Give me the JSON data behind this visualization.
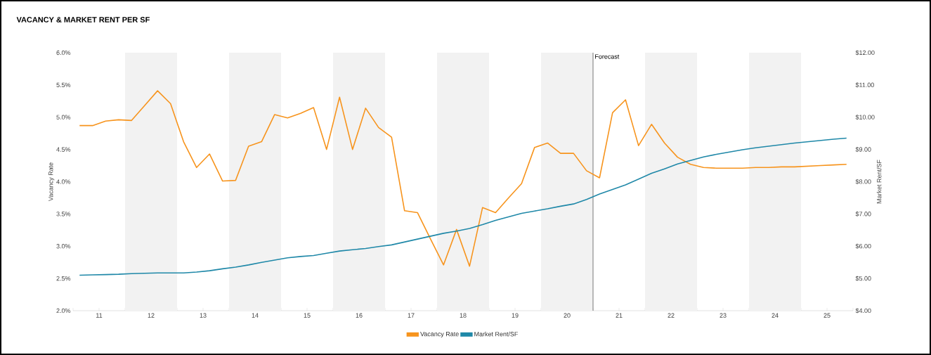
{
  "chart_data": {
    "type": "line",
    "title": "VACANCY & MARKET RENT PER SF",
    "ylabel": "Vacancy Rate",
    "y2label": "Market Rent/SF",
    "x": [
      11.125,
      11.375,
      11.625,
      11.875,
      12.125,
      12.375,
      12.625,
      12.875,
      13.125,
      13.375,
      13.625,
      13.875,
      14.125,
      14.375,
      14.625,
      14.875,
      15.125,
      15.375,
      15.625,
      15.875,
      16.125,
      16.375,
      16.625,
      16.875,
      17.125,
      17.375,
      17.625,
      17.875,
      18.125,
      18.375,
      18.625,
      18.875,
      19.125,
      19.375,
      19.625,
      19.875,
      20.125,
      20.375,
      20.625,
      20.875,
      21.125,
      21.375,
      21.625,
      21.875,
      22.125,
      22.375,
      22.625,
      22.875,
      23.125,
      23.375,
      23.625,
      23.875,
      24.125,
      24.375,
      24.625,
      24.875,
      25.125,
      25.375,
      25.625,
      25.875
    ],
    "series": [
      {
        "name": "Vacancy Rate",
        "color": "#f7941d",
        "values": [
          4.87,
          4.87,
          4.94,
          4.96,
          4.95,
          5.18,
          5.41,
          5.21,
          4.62,
          4.22,
          4.43,
          4.01,
          4.02,
          4.55,
          4.62,
          5.04,
          4.99,
          5.06,
          5.15,
          4.5,
          5.31,
          4.5,
          5.14,
          4.84,
          4.69,
          3.55,
          3.52,
          3.11,
          2.71,
          3.26,
          2.69,
          3.6,
          3.52,
          3.75,
          3.97,
          4.53,
          4.6,
          4.44,
          4.44,
          4.17,
          4.06,
          5.07,
          5.27,
          4.56,
          4.89,
          4.6,
          4.38,
          4.27,
          4.22,
          4.21,
          4.21,
          4.21,
          4.22,
          4.22,
          4.23,
          4.23,
          4.24,
          4.25,
          4.26,
          4.27
        ]
      },
      {
        "name": "Market Rent/SF",
        "color": "#1f88a8",
        "axis": "y2",
        "values": [
          5.1,
          5.11,
          5.12,
          5.13,
          5.15,
          5.16,
          5.17,
          5.17,
          5.17,
          5.2,
          5.24,
          5.3,
          5.35,
          5.42,
          5.5,
          5.57,
          5.64,
          5.68,
          5.71,
          5.78,
          5.85,
          5.89,
          5.93,
          5.99,
          6.04,
          6.13,
          6.22,
          6.31,
          6.4,
          6.47,
          6.55,
          6.67,
          6.8,
          6.91,
          7.02,
          7.09,
          7.16,
          7.24,
          7.31,
          7.45,
          7.62,
          7.76,
          7.9,
          8.08,
          8.26,
          8.4,
          8.55,
          8.66,
          8.77,
          8.85,
          8.92,
          8.99,
          9.05,
          9.1,
          9.15,
          9.2,
          9.24,
          9.28,
          9.32,
          9.35
        ]
      }
    ],
    "xlim": [
      11,
      26
    ],
    "xticks": [
      {
        "value": 11,
        "label": null
      },
      {
        "value": 11.5,
        "label": "11"
      },
      {
        "value": 12,
        "label": null
      },
      {
        "value": 12.5,
        "label": "12"
      },
      {
        "value": 13,
        "label": null
      },
      {
        "value": 13.5,
        "label": "13"
      },
      {
        "value": 14,
        "label": null
      },
      {
        "value": 14.5,
        "label": "14"
      },
      {
        "value": 15,
        "label": null
      },
      {
        "value": 15.5,
        "label": "15"
      },
      {
        "value": 16,
        "label": null
      },
      {
        "value": 16.5,
        "label": "16"
      },
      {
        "value": 17,
        "label": null
      },
      {
        "value": 17.5,
        "label": "17"
      },
      {
        "value": 18,
        "label": null
      },
      {
        "value": 18.5,
        "label": "18"
      },
      {
        "value": 19,
        "label": null
      },
      {
        "value": 19.5,
        "label": "19"
      },
      {
        "value": 20,
        "label": null
      },
      {
        "value": 20.5,
        "label": "20"
      },
      {
        "value": 21,
        "label": null
      },
      {
        "value": 21.5,
        "label": "21"
      },
      {
        "value": 22,
        "label": null
      },
      {
        "value": 22.5,
        "label": "22"
      },
      {
        "value": 23,
        "label": null
      },
      {
        "value": 23.5,
        "label": "23"
      },
      {
        "value": 24,
        "label": null
      },
      {
        "value": 24.5,
        "label": "24"
      },
      {
        "value": 25,
        "label": null
      },
      {
        "value": 25.5,
        "label": "25"
      },
      {
        "value": 26,
        "label": null
      }
    ],
    "ylim": [
      2,
      6
    ],
    "yticks": [
      {
        "value": 2,
        "label": "2.0%"
      },
      {
        "value": 2.5,
        "label": "2.5%"
      },
      {
        "value": 3,
        "label": "3.0%"
      },
      {
        "value": 3.5,
        "label": "3.5%"
      },
      {
        "value": 4,
        "label": "4.0%"
      },
      {
        "value": 4.5,
        "label": "4.5%"
      },
      {
        "value": 5,
        "label": "5.0%"
      },
      {
        "value": 5.5,
        "label": "5.5%"
      },
      {
        "value": 6,
        "label": "6.0%"
      }
    ],
    "y2lim": [
      4,
      12
    ],
    "y2ticks": [
      {
        "value": 4,
        "label": "$4.00"
      },
      {
        "value": 5,
        "label": "$5.00"
      },
      {
        "value": 6,
        "label": "$6.00"
      },
      {
        "value": 7,
        "label": "$7.00"
      },
      {
        "value": 8,
        "label": "$8.00"
      },
      {
        "value": 9,
        "label": "$9.00"
      },
      {
        "value": 10,
        "label": "$10.00"
      },
      {
        "value": 11,
        "label": "$11.00"
      },
      {
        "value": 12,
        "label": "$12.00"
      }
    ],
    "ref_lines": [
      {
        "axis": "x",
        "value": 21,
        "label": "Forecast",
        "color": "#555555"
      }
    ],
    "bands": [
      {
        "axis": "x",
        "from": 12,
        "to": 13,
        "color": "#f2f2f2"
      },
      {
        "axis": "x",
        "from": 14,
        "to": 15,
        "color": "#f2f2f2"
      },
      {
        "axis": "x",
        "from": 16,
        "to": 17,
        "color": "#f2f2f2"
      },
      {
        "axis": "x",
        "from": 18,
        "to": 19,
        "color": "#f2f2f2"
      },
      {
        "axis": "x",
        "from": 20,
        "to": 21,
        "color": "#f2f2f2"
      },
      {
        "axis": "x",
        "from": 22,
        "to": 23,
        "color": "#f2f2f2"
      },
      {
        "axis": "x",
        "from": 24,
        "to": 25,
        "color": "#f2f2f2"
      }
    ],
    "legend": "bottom",
    "marker": "none",
    "line_style": "solid"
  }
}
